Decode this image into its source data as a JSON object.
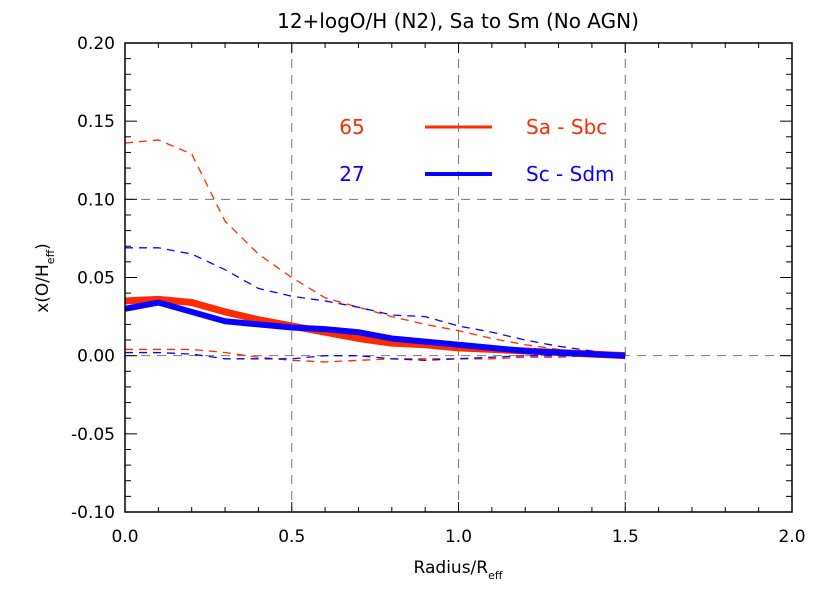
{
  "chart_data": {
    "type": "line",
    "title": "12+logO/H (N2), Sa to Sm (No AGN)",
    "xlabel": "Radius/R",
    "xlabel_sub": "eff",
    "ylabel": "x(O/H",
    "ylabel_sub": "eff",
    "ylabel_close": ")",
    "xlim": [
      0,
      2
    ],
    "ylim": [
      -0.1,
      0.2
    ],
    "xticks": [
      "0.0",
      "0.5",
      "1.0",
      "1.5",
      "2.0"
    ],
    "yticks": [
      "-0.10",
      "-0.05",
      "0.00",
      "0.05",
      "0.10",
      "0.15",
      "0.20"
    ],
    "grid": "dashed",
    "legend_placement": "top-center",
    "x": [
      0,
      0.1,
      0.2,
      0.3,
      0.4,
      0.5,
      0.6,
      0.7,
      0.8,
      0.9,
      1.0,
      1.1,
      1.2,
      1.3,
      1.4,
      1.5
    ],
    "series": [
      {
        "name": "Sa - Sbc",
        "count": "65",
        "color": "#ff2a00",
        "style": "solid",
        "values": [
          0.035,
          0.036,
          0.034,
          0.028,
          0.023,
          0.019,
          0.015,
          0.011,
          0.008,
          0.007,
          0.005,
          0.004,
          0.003,
          0.002,
          0.001,
          0.0
        ],
        "upper": [
          0.136,
          0.138,
          0.129,
          0.086,
          0.065,
          0.05,
          0.037,
          0.031,
          0.025,
          0.02,
          0.016,
          0.011,
          0.007,
          0.004,
          0.002,
          0.0
        ],
        "lower": [
          0.004,
          0.004,
          0.004,
          0.002,
          -0.001,
          -0.003,
          -0.004,
          -0.003,
          -0.002,
          -0.002,
          -0.002,
          -0.002,
          -0.001,
          -0.001,
          0.0,
          0.0
        ]
      },
      {
        "name": "Sc - Sdm",
        "count": "27",
        "color": "#0a00ff",
        "style": "solid",
        "values": [
          0.03,
          0.034,
          0.028,
          0.022,
          0.02,
          0.018,
          0.017,
          0.015,
          0.011,
          0.009,
          0.007,
          0.005,
          0.003,
          0.002,
          0.001,
          0.0
        ],
        "upper": [
          0.069,
          0.069,
          0.065,
          0.055,
          0.043,
          0.038,
          0.035,
          0.031,
          0.026,
          0.025,
          0.019,
          0.015,
          0.01,
          0.006,
          0.003,
          0.0
        ],
        "lower": [
          0.002,
          0.002,
          0.001,
          -0.002,
          -0.002,
          -0.002,
          0.0,
          0.0,
          -0.002,
          -0.003,
          -0.002,
          -0.001,
          0.0,
          0.0,
          0.0,
          0.0
        ]
      }
    ]
  }
}
